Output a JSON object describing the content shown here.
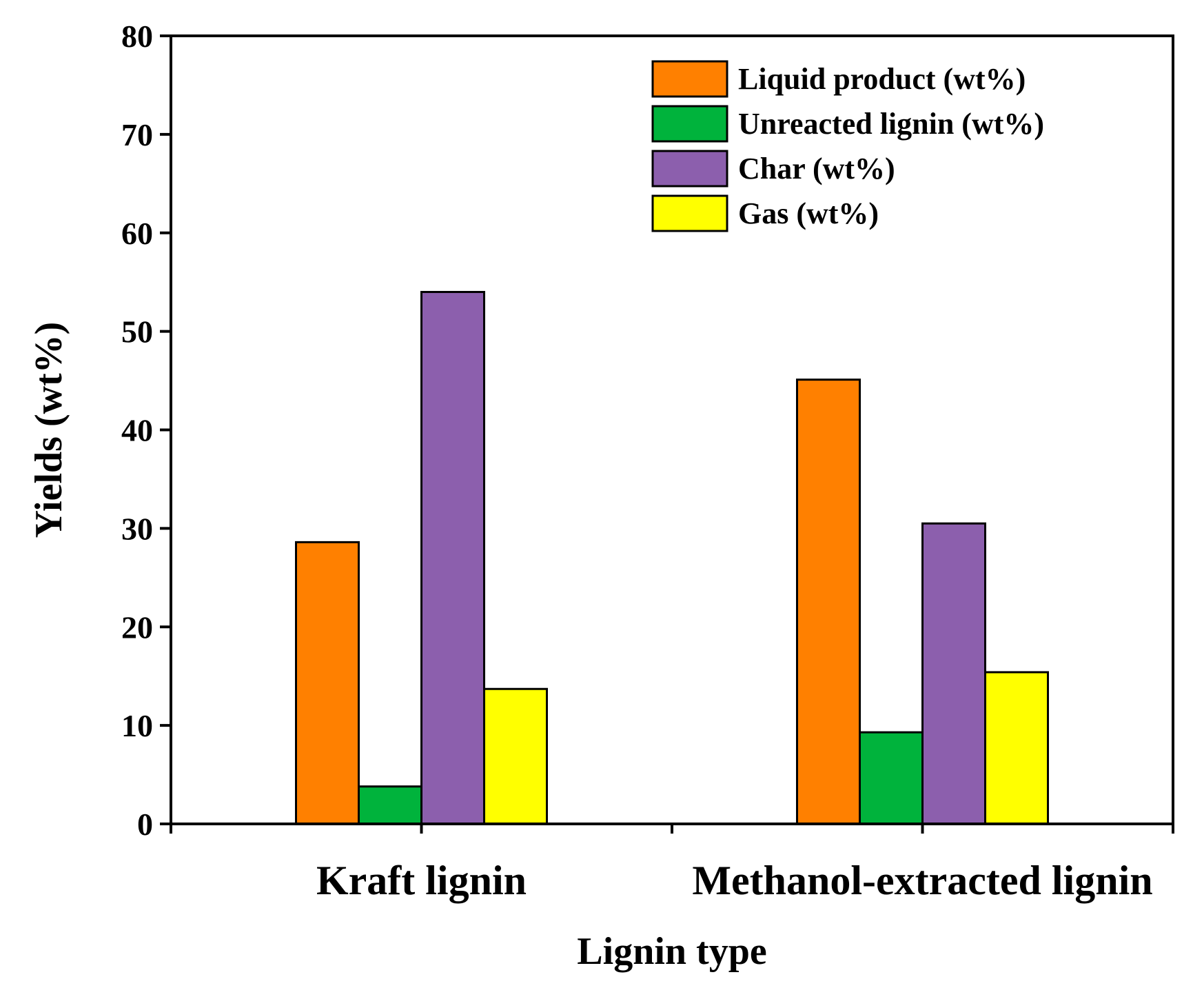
{
  "chart_data": {
    "type": "bar",
    "categories": [
      "Kraft lignin",
      "Methanol-extracted lignin"
    ],
    "series": [
      {
        "name": "Liquid product (wt%)",
        "values": [
          28.6,
          45.1
        ],
        "color": "#ff8000"
      },
      {
        "name": "Unreacted lignin (wt%)",
        "values": [
          3.8,
          9.3
        ],
        "color": "#00b33c"
      },
      {
        "name": "Char (wt%)",
        "values": [
          54.0,
          30.5
        ],
        "color": "#8c5fad"
      },
      {
        "name": "Gas (wt%)",
        "values": [
          13.7,
          15.4
        ],
        "color": "#ffff00"
      }
    ],
    "title": "",
    "xlabel": "Lignin type",
    "ylabel": "Yields (wt%)",
    "ylim": [
      0,
      80
    ],
    "yticks": [
      0,
      10,
      20,
      30,
      40,
      50,
      60,
      70,
      80
    ],
    "grid": false,
    "legend_position": "top-right"
  }
}
